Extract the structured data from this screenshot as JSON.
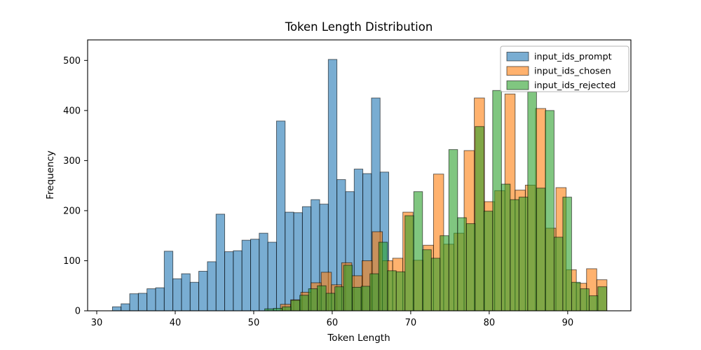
{
  "chart_data": {
    "type": "bar",
    "subtype": "overlapping-histogram",
    "title": "Token Length Distribution",
    "xlabel": "Token Length",
    "ylabel": "Frequency",
    "xlim": [
      28.84,
      98.05
    ],
    "ylim": [
      0,
      541
    ],
    "xticks": [
      30,
      40,
      50,
      60,
      70,
      80,
      90
    ],
    "yticks": [
      0,
      100,
      200,
      300,
      400,
      500
    ],
    "grid": false,
    "legend_position": "upper right",
    "background_color": "#ffffff",
    "bar_alpha": 0.6,
    "bar_edge_color": "#000000",
    "series": [
      {
        "name": "input_ids_prompt",
        "color": "#1f77b4",
        "bin_start": 32.0,
        "bin_width": 1.1,
        "values": [
          8,
          14,
          34,
          35,
          44,
          46,
          119,
          64,
          74,
          57,
          79,
          98,
          193,
          118,
          120,
          141,
          143,
          155,
          137,
          379,
          197,
          196,
          208,
          222,
          213,
          502,
          262,
          238,
          283,
          274,
          425,
          277
        ]
      },
      {
        "name": "input_ids_chosen",
        "color": "#ff7f0e",
        "bin_start": 53.4,
        "bin_width": 1.3,
        "values": [
          13,
          22,
          37,
          56,
          77,
          52,
          96,
          70,
          100,
          158,
          100,
          105,
          197,
          101,
          131,
          273,
          133,
          155,
          320,
          425,
          218,
          240,
          433,
          241,
          251,
          404,
          165,
          246,
          82,
          55,
          84,
          62
        ]
      },
      {
        "name": "input_ids_rejected",
        "color": "#2ca02c",
        "bin_start": 51.4,
        "bin_width": 1.117,
        "values": [
          4,
          5,
          8,
          21,
          31,
          44,
          50,
          35,
          48,
          91,
          47,
          49,
          74,
          137,
          80,
          78,
          190,
          238,
          122,
          105,
          150,
          322,
          186,
          174,
          368,
          199,
          440,
          253,
          222,
          227,
          437,
          245,
          400,
          147,
          227,
          57,
          44,
          30,
          48
        ]
      }
    ],
    "legend": {
      "entries": [
        {
          "label": "input_ids_prompt",
          "color": "#1f77b4"
        },
        {
          "label": "input_ids_chosen",
          "color": "#ff7f0e"
        },
        {
          "label": "input_ids_rejected",
          "color": "#2ca02c"
        }
      ]
    }
  }
}
